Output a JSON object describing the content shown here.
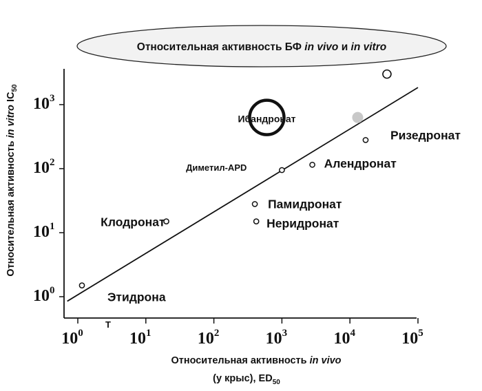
{
  "chart_data": {
    "type": "scatter",
    "title": {
      "main": "Относительная активность БФ ",
      "it1": "in vivo",
      "mid": " и ",
      "it2": "in vitro"
    },
    "xlabel": {
      "line1_main": "Относительная активность ",
      "line1_it": "in vivo",
      "line2_main": "(у крыс), ED",
      "line2_sub": "50"
    },
    "ylabel": {
      "main": "Относительная активность ",
      "it": "in vitro",
      "tail": " IC",
      "sub": "50"
    },
    "x_scale": "log",
    "y_scale": "log",
    "x_ticks": [
      {
        "base": "10",
        "exp": "0",
        "value": 1
      },
      {
        "base": "10",
        "exp": "1",
        "value": 10
      },
      {
        "base": "10",
        "exp": "2",
        "value": 100
      },
      {
        "base": "10",
        "exp": "3",
        "value": 1000
      },
      {
        "base": "10",
        "exp": "4",
        "value": 10000
      },
      {
        "base": "10",
        "exp": "5",
        "value": 100000
      }
    ],
    "y_ticks": [
      {
        "base": "10",
        "exp": "0",
        "value": 1
      },
      {
        "base": "10",
        "exp": "1",
        "value": 10
      },
      {
        "base": "10",
        "exp": "2",
        "value": 100
      },
      {
        "base": "10",
        "exp": "3",
        "value": 1000
      }
    ],
    "xlim": [
      0.7,
      100000
    ],
    "ylim": [
      0.65,
      4000
    ],
    "points": [
      {
        "label": "Этидрона",
        "x": 1.15,
        "y": 1.5,
        "style": "open"
      },
      {
        "label": "Клодронат",
        "x": 20,
        "y": 15,
        "style": "open"
      },
      {
        "label": "Памидронат",
        "x": 400,
        "y": 28,
        "style": "open"
      },
      {
        "label": "Неридронат",
        "x": 420,
        "y": 15,
        "style": "open"
      },
      {
        "label": "Диметил-APD",
        "x": 1000,
        "y": 95,
        "style": "open"
      },
      {
        "label": "Алендронат",
        "x": 2800,
        "y": 115,
        "style": "open"
      },
      {
        "label": "Ризедронат",
        "x": 17000,
        "y": 280,
        "style": "open"
      },
      {
        "label": "Ибандронат",
        "x": 600,
        "y": 630,
        "style": "big-ring"
      },
      {
        "label": "",
        "x": 13000,
        "y": 630,
        "style": "filled"
      },
      {
        "label": "",
        "x": 35000,
        "y": 3000,
        "style": "open-large"
      }
    ],
    "fit_line": {
      "x": [
        0.7,
        100000
      ],
      "y": [
        0.85,
        1850
      ]
    },
    "annotations": [
      "T"
    ],
    "grid": false,
    "legend": "none",
    "colors": {
      "ink": "#111111",
      "filled_point": "#c8c8c8",
      "ellipse_fill": "#f2f2f2"
    }
  }
}
